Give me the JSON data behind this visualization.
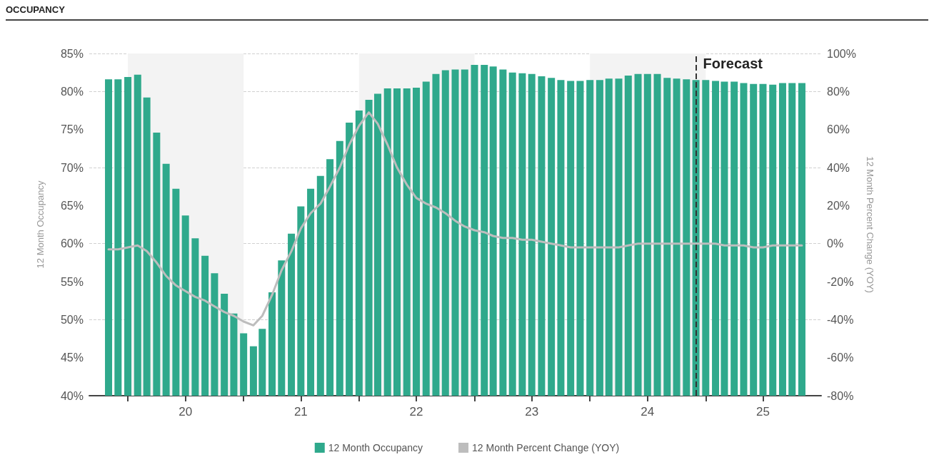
{
  "chart_data": {
    "type": "bar",
    "title": "OCCUPANCY",
    "ylabel": "12 Month Occupancy",
    "y2label": "12 Month Percent Change (YOY)",
    "x": [
      "2019-11",
      "2019-12",
      "2020-01",
      "2020-02",
      "2020-03",
      "2020-04",
      "2020-05",
      "2020-06",
      "2020-07",
      "2020-08",
      "2020-09",
      "2020-10",
      "2020-11",
      "2020-12",
      "2021-01",
      "2021-02",
      "2021-03",
      "2021-04",
      "2021-05",
      "2021-06",
      "2021-07",
      "2021-08",
      "2021-09",
      "2021-10",
      "2021-11",
      "2021-12",
      "2022-01",
      "2022-02",
      "2022-03",
      "2022-04",
      "2022-05",
      "2022-06",
      "2022-07",
      "2022-08",
      "2022-09",
      "2022-10",
      "2022-11",
      "2022-12",
      "2023-01",
      "2023-02",
      "2023-03",
      "2023-04",
      "2023-05",
      "2023-06",
      "2023-07",
      "2023-08",
      "2023-09",
      "2023-10",
      "2023-11",
      "2023-12",
      "2024-01",
      "2024-02",
      "2024-03",
      "2024-04",
      "2024-05",
      "2024-06",
      "2024-07",
      "2024-08",
      "2024-09",
      "2024-10",
      "2024-11",
      "2024-12",
      "2025-01",
      "2025-02",
      "2025-03",
      "2025-04",
      "2025-05",
      "2025-06",
      "2025-07",
      "2025-08",
      "2025-09",
      "2025-10",
      "2025-11"
    ],
    "series": [
      {
        "name": "12 Month Occupancy",
        "color": "#2fa98c",
        "values": [
          81.6,
          81.6,
          81.9,
          82.2,
          79.2,
          74.6,
          70.5,
          67.2,
          63.7,
          60.7,
          58.4,
          56.1,
          53.4,
          50.8,
          48.2,
          46.5,
          48.8,
          53.6,
          57.8,
          61.3,
          64.9,
          67.2,
          68.9,
          71.1,
          73.5,
          75.9,
          77.5,
          78.9,
          79.7,
          80.4,
          80.4,
          80.4,
          80.5,
          81.3,
          82.3,
          82.8,
          82.9,
          82.9,
          83.5,
          83.5,
          83.3,
          82.9,
          82.5,
          82.4,
          82.3,
          82.0,
          81.8,
          81.5,
          81.4,
          81.4,
          81.5,
          81.5,
          81.7,
          81.7,
          82.1,
          82.3,
          82.3,
          82.3,
          81.8,
          81.7,
          81.6,
          81.5,
          81.5,
          81.4,
          81.3,
          81.3,
          81.1,
          81.0,
          81.0,
          80.9,
          81.1,
          81.1,
          81.1
        ]
      },
      {
        "name": "12 Month Percent Change (YOY)",
        "type": "line",
        "axis": "y2",
        "color": "#bdbdbd",
        "values": [
          -3,
          -3,
          -2,
          -1,
          -4,
          -10,
          -17,
          -22,
          -25,
          -28,
          -30,
          -33,
          -36,
          -38,
          -41,
          -43,
          -38,
          -27,
          -14,
          -4,
          8,
          16,
          21,
          30,
          40,
          52,
          62,
          69,
          63,
          52,
          40,
          31,
          24,
          21,
          19,
          16,
          12,
          9,
          7,
          6,
          4,
          3,
          3,
          2,
          2,
          1,
          0,
          -1,
          -2,
          -2,
          -2,
          -2,
          -2,
          -2,
          -1,
          0,
          0,
          0,
          0,
          0,
          0,
          0,
          0,
          0,
          -1,
          -1,
          -1,
          -2,
          -2,
          -1,
          -1,
          -1,
          -1
        ]
      }
    ],
    "xlim": [
      "2019-09",
      "2026-01"
    ],
    "xticks": [
      {
        "value": "2020-01",
        "label": null
      },
      {
        "value": "2020-07",
        "label": "20"
      },
      {
        "value": "2021-01",
        "label": null
      },
      {
        "value": "2021-07",
        "label": "21"
      },
      {
        "value": "2022-01",
        "label": null
      },
      {
        "value": "2022-07",
        "label": "22"
      },
      {
        "value": "2023-01",
        "label": null
      },
      {
        "value": "2023-07",
        "label": "23"
      },
      {
        "value": "2024-01",
        "label": null
      },
      {
        "value": "2024-07",
        "label": "24"
      },
      {
        "value": "2025-01",
        "label": null
      },
      {
        "value": "2025-07",
        "label": "25"
      }
    ],
    "ylim": [
      40,
      85
    ],
    "yticks": [
      {
        "value": 40,
        "label": "40%"
      },
      {
        "value": 45,
        "label": "45%"
      },
      {
        "value": 50,
        "label": "50%"
      },
      {
        "value": 55,
        "label": "55%"
      },
      {
        "value": 60,
        "label": "60%"
      },
      {
        "value": 65,
        "label": "65%"
      },
      {
        "value": 70,
        "label": "70%"
      },
      {
        "value": 75,
        "label": "75%"
      },
      {
        "value": 80,
        "label": "80%"
      },
      {
        "value": 85,
        "label": "85%"
      }
    ],
    "y2lim": [
      -80,
      100
    ],
    "y2ticks": [
      {
        "value": -80,
        "label": "-80%"
      },
      {
        "value": -60,
        "label": "-60%"
      },
      {
        "value": -40,
        "label": "-40%"
      },
      {
        "value": -20,
        "label": "-20%"
      },
      {
        "value": 0,
        "label": "0%"
      },
      {
        "value": 20,
        "label": "20%"
      },
      {
        "value": 40,
        "label": "40%"
      },
      {
        "value": 60,
        "label": "60%"
      },
      {
        "value": 80,
        "label": "80%"
      },
      {
        "value": 100,
        "label": "100%"
      }
    ],
    "ref_lines": [
      {
        "axis": "x",
        "value": "2024-12",
        "label": "Forecast",
        "color": "#333333",
        "line_style": "dashed"
      }
    ],
    "bands": [
      {
        "axis": "x",
        "from": "2020-01",
        "to": "2021-01",
        "color": "#f3f3f3"
      },
      {
        "axis": "x",
        "from": "2022-01",
        "to": "2023-01",
        "color": "#f3f3f3"
      },
      {
        "axis": "x",
        "from": "2024-01",
        "to": "2025-01",
        "color": "#f3f3f3"
      }
    ],
    "grid": "y",
    "legend": "bottom",
    "marker": "none",
    "line_style": "solid"
  }
}
